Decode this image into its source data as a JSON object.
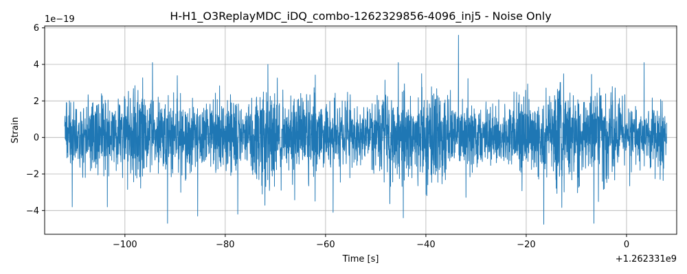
{
  "chart_data": {
    "type": "line",
    "title": "H-H1_O3ReplayMDC_iDQ_combo-1262329856-4096_inj5 - Noise Only",
    "xlabel": "Time [s]",
    "ylabel": "Strain",
    "x_offset_label": "+1.262331e9",
    "y_scale_label": "1e−19",
    "xlim": [
      -116,
      10
    ],
    "ylim": [
      -5.3,
      6.1
    ],
    "x_ticks": [
      -100,
      -80,
      -60,
      -40,
      -20,
      0
    ],
    "x_tick_labels": [
      "−100",
      "−80",
      "−60",
      "−40",
      "−20",
      "0"
    ],
    "y_ticks": [
      -4,
      -2,
      0,
      2,
      4,
      6
    ],
    "y_tick_labels": [
      "−4",
      "−2",
      "0",
      "2",
      "4",
      "6"
    ],
    "grid": true,
    "series": [
      {
        "color": "#1f77b4",
        "x_range": [
          -112,
          8
        ],
        "typical_envelope": [
          -1.6,
          1.8
        ],
        "peaks": [
          {
            "x": -33.5,
            "y": 5.6
          },
          {
            "x": -91.5,
            "y": -4.7
          },
          {
            "x": -16.5,
            "y": -4.75
          },
          {
            "x": -6.5,
            "y": -4.7
          },
          {
            "x": -45.5,
            "y": 4.1
          },
          {
            "x": -44.5,
            "y": -4.4
          },
          {
            "x": -85.5,
            "y": -4.3
          },
          {
            "x": -71.5,
            "y": 4.0
          },
          {
            "x": 3.5,
            "y": 4.1
          },
          {
            "x": -77.5,
            "y": -4.2
          },
          {
            "x": -58.5,
            "y": -4.1
          },
          {
            "x": -103.5,
            "y": -3.8
          },
          {
            "x": -94.5,
            "y": 4.1
          },
          {
            "x": -110.5,
            "y": -3.8
          }
        ]
      }
    ]
  }
}
